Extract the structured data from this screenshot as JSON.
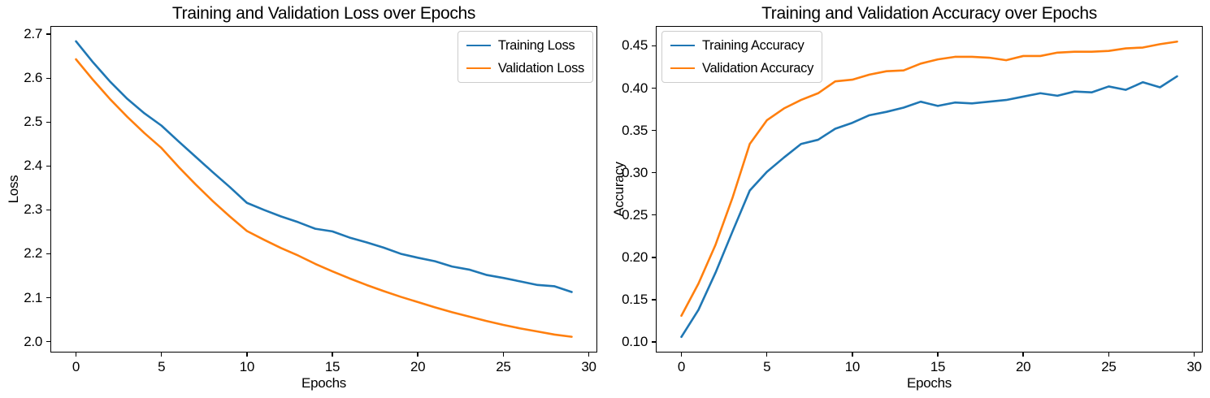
{
  "chart_data": [
    {
      "type": "line",
      "title": "Training and Validation Loss over Epochs",
      "xlabel": "Epochs",
      "ylabel": "Loss",
      "x": [
        0,
        1,
        2,
        3,
        4,
        5,
        6,
        7,
        8,
        9,
        10,
        11,
        12,
        13,
        14,
        15,
        16,
        17,
        18,
        19,
        20,
        21,
        22,
        23,
        24,
        25,
        26,
        27,
        28,
        29
      ],
      "series": [
        {
          "name": "Training Loss",
          "color": "#1f77b4",
          "values": [
            2.684,
            2.636,
            2.592,
            2.553,
            2.52,
            2.492,
            2.456,
            2.421,
            2.386,
            2.352,
            2.316,
            2.3,
            2.285,
            2.272,
            2.257,
            2.251,
            2.237,
            2.226,
            2.214,
            2.2,
            2.191,
            2.183,
            2.171,
            2.164,
            2.152,
            2.145,
            2.137,
            2.129,
            2.126,
            2.113
          ]
        },
        {
          "name": "Validation Loss",
          "color": "#ff7f0e",
          "values": [
            2.643,
            2.596,
            2.552,
            2.512,
            2.475,
            2.441,
            2.398,
            2.358,
            2.32,
            2.285,
            2.252,
            2.232,
            2.213,
            2.196,
            2.177,
            2.16,
            2.144,
            2.129,
            2.115,
            2.102,
            2.09,
            2.078,
            2.067,
            2.057,
            2.047,
            2.038,
            2.03,
            2.023,
            2.016,
            2.011
          ]
        }
      ],
      "xlim": [
        -1.45,
        30.45
      ],
      "ylim": [
        1.977,
        2.717
      ],
      "xticks": [
        0,
        5,
        10,
        15,
        20,
        25,
        30
      ],
      "xtick_labels": [
        "0",
        "5",
        "10",
        "15",
        "20",
        "25",
        "30"
      ],
      "yticks": [
        2.0,
        2.1,
        2.2,
        2.3,
        2.4,
        2.5,
        2.6,
        2.7
      ],
      "ytick_labels": [
        "2.0",
        "2.1",
        "2.2",
        "2.3",
        "2.4",
        "2.5",
        "2.6",
        "2.7"
      ],
      "legend_position": "upper-right",
      "grid": false
    },
    {
      "type": "line",
      "title": "Training and Validation Accuracy over Epochs",
      "xlabel": "Epochs",
      "ylabel": "Accuracy",
      "x": [
        0,
        1,
        2,
        3,
        4,
        5,
        6,
        7,
        8,
        9,
        10,
        11,
        12,
        13,
        14,
        15,
        16,
        17,
        18,
        19,
        20,
        21,
        22,
        23,
        24,
        25,
        26,
        27,
        28,
        29
      ],
      "series": [
        {
          "name": "Training Accuracy",
          "color": "#1f77b4",
          "values": [
            0.106,
            0.138,
            0.182,
            0.231,
            0.279,
            0.301,
            0.318,
            0.334,
            0.339,
            0.352,
            0.359,
            0.368,
            0.372,
            0.377,
            0.384,
            0.379,
            0.383,
            0.382,
            0.384,
            0.386,
            0.39,
            0.394,
            0.391,
            0.396,
            0.395,
            0.402,
            0.398,
            0.407,
            0.401,
            0.414
          ]
        },
        {
          "name": "Validation Accuracy",
          "color": "#ff7f0e",
          "values": [
            0.131,
            0.169,
            0.215,
            0.271,
            0.334,
            0.362,
            0.376,
            0.386,
            0.394,
            0.408,
            0.41,
            0.416,
            0.42,
            0.421,
            0.429,
            0.434,
            0.437,
            0.437,
            0.436,
            0.433,
            0.438,
            0.438,
            0.442,
            0.443,
            0.443,
            0.444,
            0.447,
            0.448,
            0.452,
            0.455
          ]
        }
      ],
      "xlim": [
        -1.45,
        30.45
      ],
      "ylim": [
        0.0885,
        0.4725
      ],
      "xticks": [
        0,
        5,
        10,
        15,
        20,
        25,
        30
      ],
      "xtick_labels": [
        "0",
        "5",
        "10",
        "15",
        "20",
        "25",
        "30"
      ],
      "yticks": [
        0.1,
        0.15,
        0.2,
        0.25,
        0.3,
        0.35,
        0.4,
        0.45
      ],
      "ytick_labels": [
        "0.10",
        "0.15",
        "0.20",
        "0.25",
        "0.30",
        "0.35",
        "0.40",
        "0.45"
      ],
      "legend_position": "upper-left",
      "grid": false
    }
  ]
}
